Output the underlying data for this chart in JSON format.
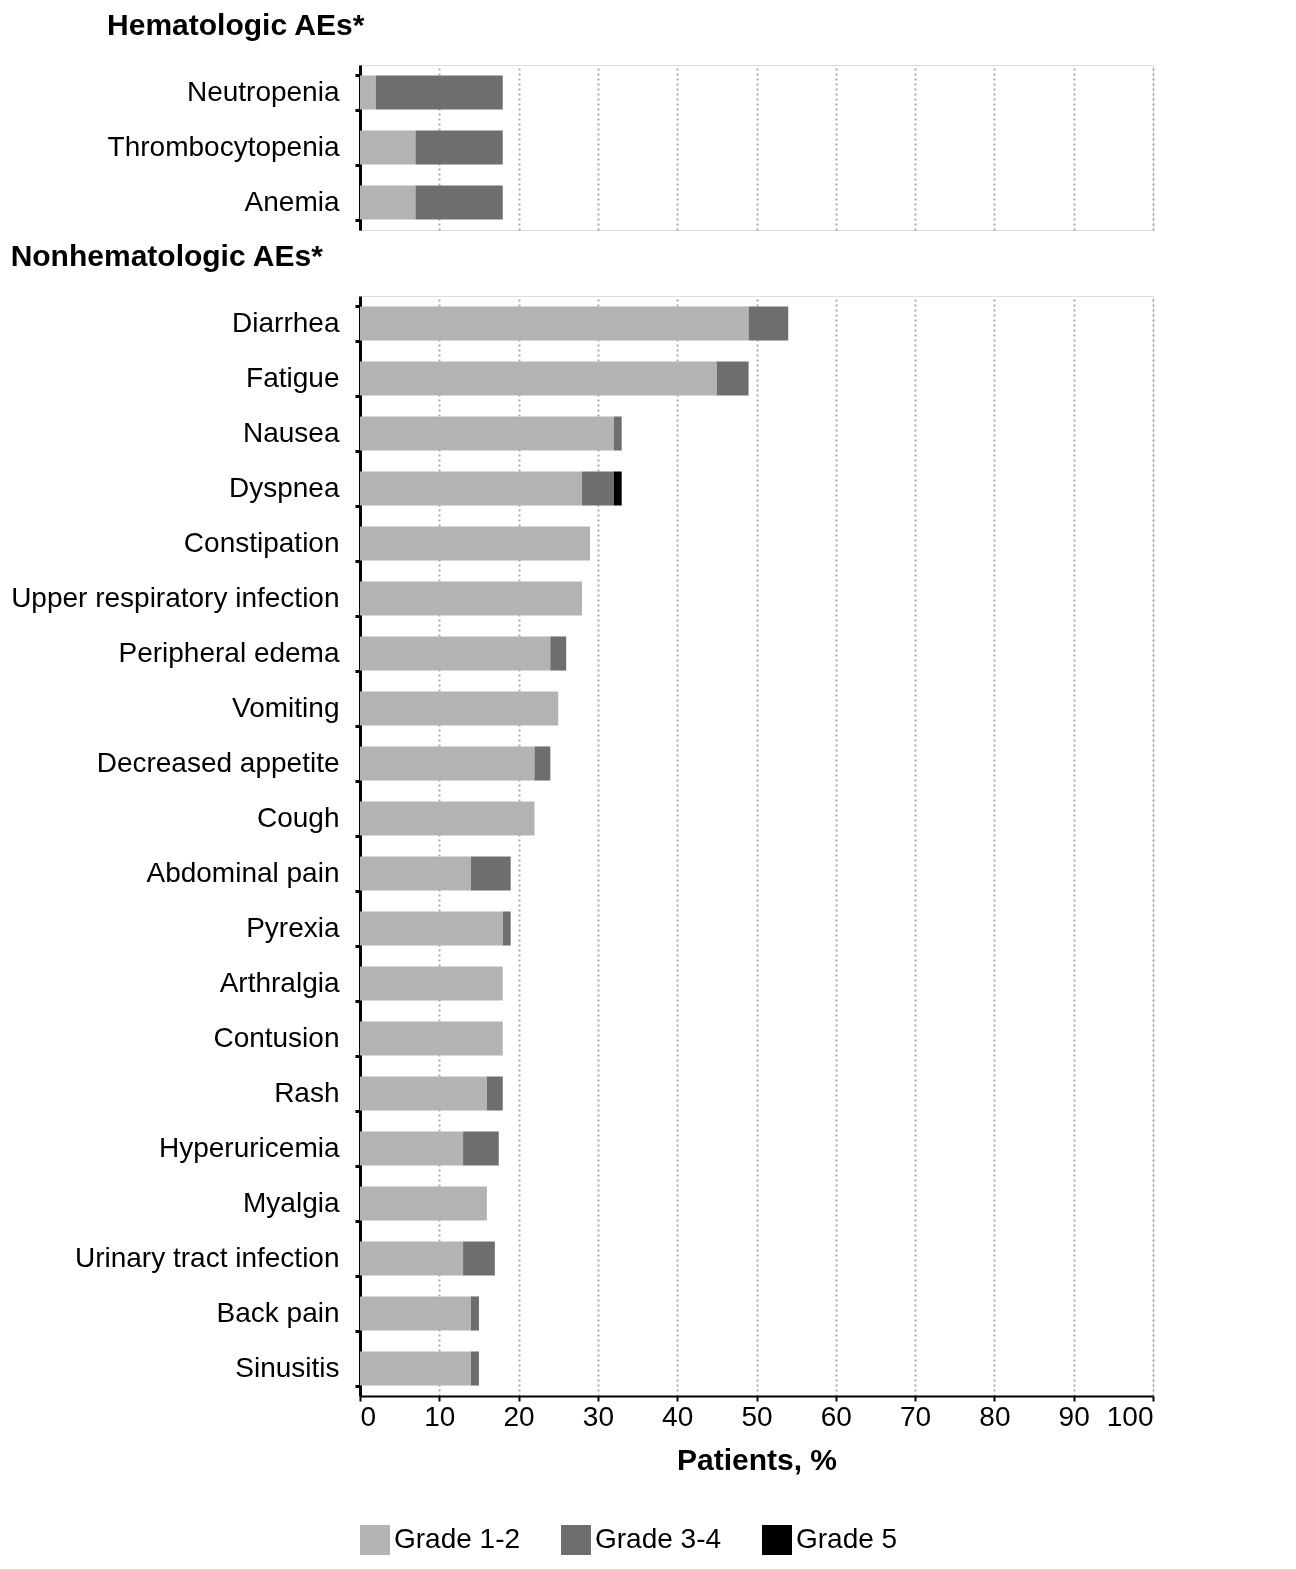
{
  "chart_data": [
    {
      "type": "bar",
      "orientation": "horizontal",
      "stacked": true,
      "title": "Hematologic AEs*",
      "categories": [
        "Neutropenia",
        "Thrombocytopenia",
        "Anemia"
      ],
      "series": [
        {
          "color": "#b3b3b3",
          "values": [
            2,
            7,
            7
          ]
        },
        {
          "color": "#6e6e6e",
          "values": [
            16,
            11,
            11
          ]
        }
      ],
      "xlim": [
        0,
        100
      ],
      "xticks": [
        0,
        10,
        20,
        30,
        40,
        50,
        60,
        70,
        80,
        90,
        100
      ],
      "grid": "x",
      "tick_labels": "y"
    },
    {
      "type": "bar",
      "orientation": "horizontal",
      "stacked": true,
      "title": "Nonhematologic AEs*",
      "xlabel": "Patients, %",
      "categories": [
        "Diarrhea",
        "Fatigue",
        "Nausea",
        "Dyspnea",
        "Constipation",
        "Upper respiratory infection",
        "Peripheral edema",
        "Vomiting",
        "Decreased appetite",
        "Cough",
        "Abdominal pain",
        "Pyrexia",
        "Arthralgia",
        "Contusion",
        "Rash",
        "Hyperuricemia",
        "Myalgia",
        "Urinary tract infection",
        "Back pain",
        "Sinusitis"
      ],
      "series": [
        {
          "name": "Grade 1-2",
          "color": "#b3b3b3",
          "values": [
            49,
            45,
            32,
            28,
            29,
            28,
            24,
            25,
            22,
            22,
            14,
            18,
            18,
            18,
            16,
            13,
            16,
            13,
            14,
            14
          ]
        },
        {
          "name": "Grade 3-4",
          "color": "#6e6e6e",
          "values": [
            5,
            4,
            1,
            4,
            null,
            null,
            2,
            null,
            2,
            null,
            5,
            1,
            null,
            null,
            2,
            4.5,
            null,
            4,
            1,
            1
          ]
        },
        {
          "name": "Grade 5",
          "color": "#000000",
          "values": [
            null,
            null,
            null,
            1,
            null,
            null,
            null,
            null,
            null,
            null,
            null,
            null,
            null,
            null,
            null,
            null,
            null,
            null,
            null,
            null
          ]
        }
      ],
      "xlim": [
        0,
        100
      ],
      "xticks": [
        0,
        10,
        20,
        30,
        40,
        50,
        60,
        70,
        80,
        90,
        100
      ],
      "grid": "x",
      "legend": "bottom"
    }
  ]
}
